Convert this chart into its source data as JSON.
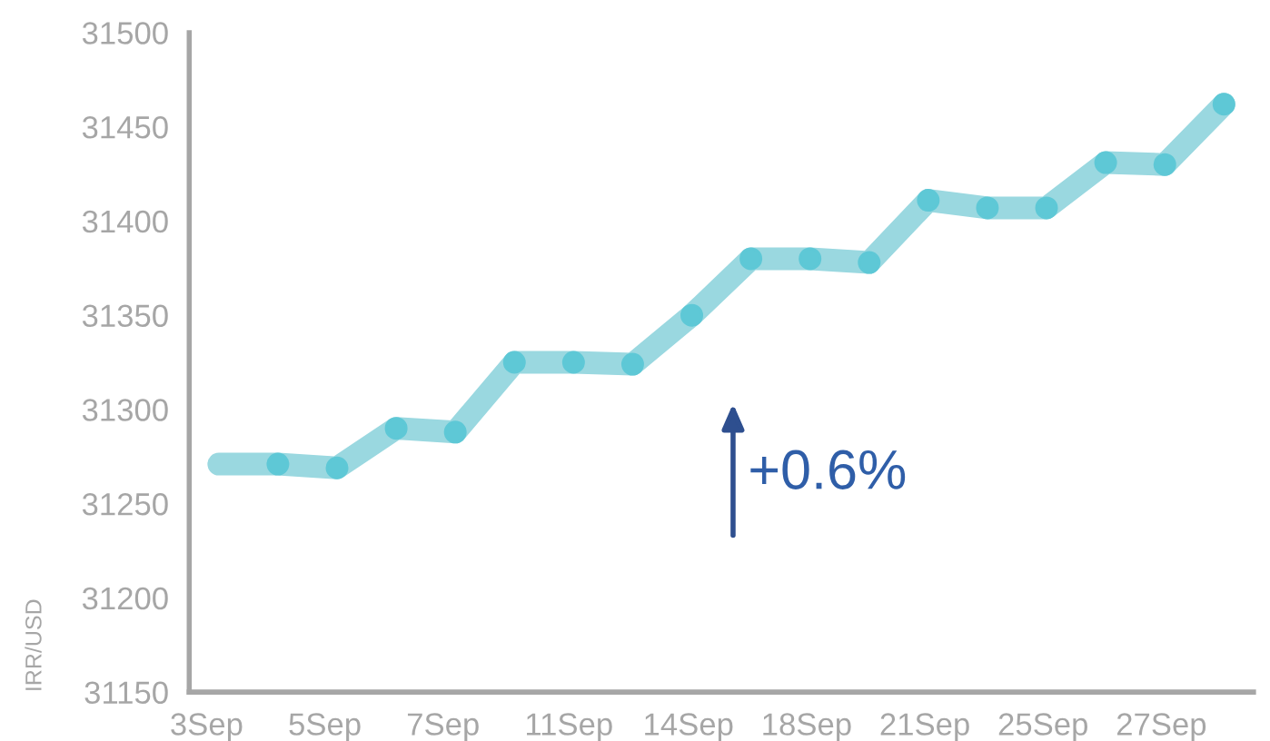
{
  "chart_data": {
    "type": "line",
    "ylabel": "IRR/USD",
    "categories": [
      "3Sep",
      null,
      "5Sep",
      null,
      "7Sep",
      null,
      "11Sep",
      null,
      "14Sep",
      null,
      "18Sep",
      null,
      "21Sep",
      null,
      "25Sep",
      null,
      "27Sep",
      null
    ],
    "series": [
      {
        "color": "#9ad8e0",
        "values": [
          31271,
          31271,
          31269,
          31290,
          31288,
          31325,
          31325,
          31324,
          31350,
          31380,
          31380,
          31378,
          31411,
          31407,
          31407,
          31431,
          31430,
          31462
        ]
      }
    ],
    "ylim": [
      31150,
      31500
    ],
    "yticks": [
      31150,
      31200,
      31250,
      31300,
      31350,
      31400,
      31450,
      31500
    ],
    "marker": "circle",
    "line_style": "solid",
    "grid": false,
    "legend": false,
    "annotations": [
      "+0.6%"
    ]
  }
}
